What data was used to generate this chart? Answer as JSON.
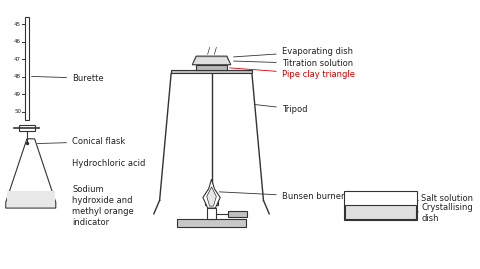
{
  "bg_color": "#ffffff",
  "line_color": "#333333",
  "fill_color": "#d8d8d8",
  "text_color": "#222222",
  "red_text_color": "#cc0000",
  "labels": {
    "burette": "Burette",
    "conical_flask": "Conical flask",
    "hcl": "Hydrochloric acid",
    "naoh": "Sodium\nhydroxide and\nmethyl orange\nindicator",
    "evaporating_dish": "Evaporating dish",
    "titration_solution": "Titration solution",
    "pipe_clay": "Pipe clay triangle",
    "tripod": "Tripod",
    "bunsen": "Bunsen burner",
    "salt_solution": "Salt solution",
    "crystallising": "Crystallising\ndish"
  },
  "tick_labels": [
    "45",
    "46",
    "47",
    "48",
    "49",
    "50"
  ]
}
